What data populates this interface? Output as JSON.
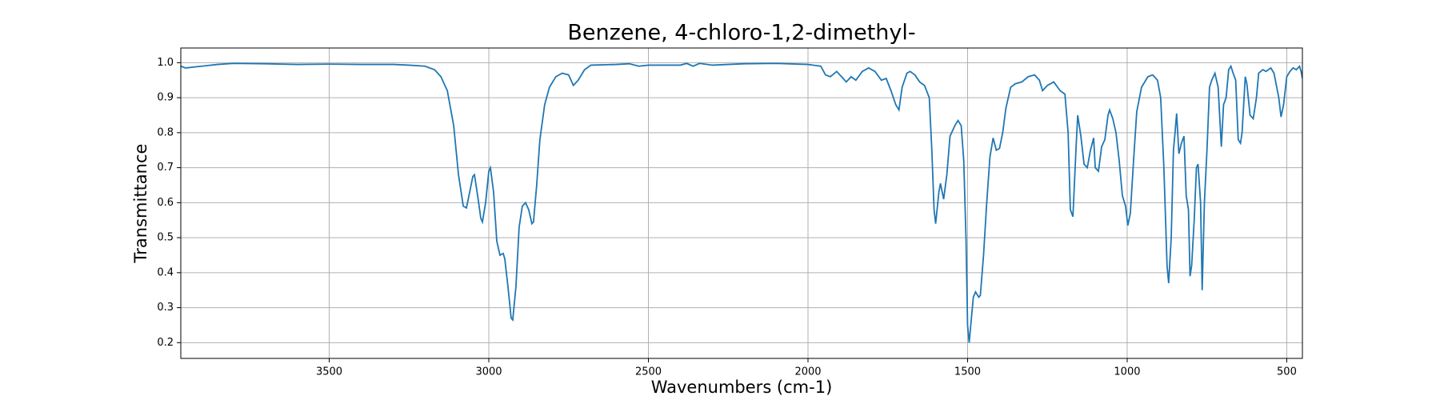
{
  "chart_data": {
    "type": "line",
    "title": "Benzene, 4-chloro-1,2-dimethyl-",
    "x_label": "Wavenumbers (cm-1)",
    "y_label": "Transmittance",
    "xlim": [
      3965,
      451
    ],
    "ylim": [
      0.155,
      1.042
    ],
    "xticks": [
      3500,
      3000,
      2500,
      2000,
      1500,
      1000,
      500
    ],
    "yticks": [
      0.2,
      0.3,
      0.4,
      0.5,
      0.6,
      0.7,
      0.8,
      0.9,
      {
        "value": 1,
        "label": "1.0"
      }
    ],
    "grid": true,
    "series": [
      {
        "color": "#1f77b4",
        "x": [
          3965,
          3950,
          3900,
          3850,
          3800,
          3700,
          3600,
          3500,
          3400,
          3300,
          3250,
          3200,
          3170,
          3150,
          3130,
          3110,
          3095,
          3080,
          3070,
          3060,
          3050,
          3045,
          3035,
          3025,
          3020,
          3010,
          3000,
          2995,
          2985,
          2975,
          2965,
          2955,
          2950,
          2940,
          2930,
          2925,
          2915,
          2905,
          2895,
          2885,
          2875,
          2865,
          2860,
          2850,
          2840,
          2825,
          2810,
          2790,
          2770,
          2750,
          2735,
          2720,
          2700,
          2680,
          2600,
          2560,
          2530,
          2500,
          2400,
          2380,
          2360,
          2340,
          2300,
          2200,
          2100,
          2000,
          1960,
          1945,
          1930,
          1910,
          1895,
          1880,
          1865,
          1850,
          1830,
          1810,
          1790,
          1770,
          1755,
          1740,
          1725,
          1715,
          1705,
          1690,
          1680,
          1665,
          1650,
          1635,
          1620,
          1612,
          1605,
          1600,
          1590,
          1585,
          1575,
          1565,
          1555,
          1540,
          1530,
          1520,
          1512,
          1505,
          1500,
          1495,
          1490,
          1482,
          1475,
          1465,
          1460,
          1450,
          1440,
          1430,
          1420,
          1410,
          1400,
          1390,
          1380,
          1365,
          1350,
          1330,
          1310,
          1290,
          1275,
          1265,
          1250,
          1230,
          1210,
          1195,
          1185,
          1178,
          1170,
          1160,
          1155,
          1145,
          1135,
          1125,
          1115,
          1105,
          1100,
          1090,
          1080,
          1070,
          1060,
          1055,
          1045,
          1035,
          1025,
          1015,
          1005,
          998,
          990,
          980,
          970,
          955,
          935,
          920,
          905,
          895,
          885,
          875,
          870,
          862,
          855,
          850,
          845,
          838,
          830,
          822,
          815,
          808,
          803,
          798,
          790,
          783,
          778,
          770,
          765,
          758,
          750,
          742,
          735,
          725,
          715,
          705,
          698,
          690,
          682,
          675,
          668,
          660,
          652,
          645,
          640,
          630,
          625,
          615,
          605,
          595,
          588,
          575,
          565,
          550,
          540,
          525,
          518,
          510,
          500,
          490,
          480,
          470,
          460,
          455,
          451
        ],
        "values": [
          0.99,
          0.985,
          0.99,
          0.995,
          0.998,
          0.997,
          0.995,
          0.996,
          0.995,
          0.995,
          0.993,
          0.99,
          0.98,
          0.96,
          0.92,
          0.82,
          0.68,
          0.59,
          0.585,
          0.63,
          0.675,
          0.68,
          0.62,
          0.555,
          0.545,
          0.6,
          0.69,
          0.7,
          0.63,
          0.49,
          0.45,
          0.455,
          0.44,
          0.36,
          0.27,
          0.265,
          0.36,
          0.53,
          0.59,
          0.6,
          0.58,
          0.54,
          0.545,
          0.65,
          0.78,
          0.88,
          0.93,
          0.96,
          0.97,
          0.965,
          0.935,
          0.95,
          0.98,
          0.993,
          0.995,
          0.997,
          0.99,
          0.993,
          0.993,
          0.998,
          0.99,
          0.998,
          0.993,
          0.997,
          0.998,
          0.995,
          0.99,
          0.965,
          0.96,
          0.975,
          0.96,
          0.945,
          0.96,
          0.95,
          0.975,
          0.985,
          0.975,
          0.95,
          0.955,
          0.92,
          0.88,
          0.865,
          0.93,
          0.97,
          0.975,
          0.965,
          0.945,
          0.935,
          0.9,
          0.75,
          0.58,
          0.54,
          0.63,
          0.655,
          0.61,
          0.68,
          0.79,
          0.82,
          0.835,
          0.82,
          0.72,
          0.5,
          0.25,
          0.2,
          0.25,
          0.33,
          0.345,
          0.33,
          0.335,
          0.45,
          0.6,
          0.73,
          0.785,
          0.75,
          0.755,
          0.8,
          0.87,
          0.93,
          0.94,
          0.945,
          0.96,
          0.965,
          0.95,
          0.92,
          0.935,
          0.945,
          0.92,
          0.91,
          0.8,
          0.58,
          0.56,
          0.76,
          0.85,
          0.79,
          0.71,
          0.7,
          0.75,
          0.785,
          0.7,
          0.69,
          0.76,
          0.78,
          0.85,
          0.865,
          0.84,
          0.8,
          0.72,
          0.62,
          0.59,
          0.535,
          0.57,
          0.72,
          0.86,
          0.93,
          0.96,
          0.965,
          0.95,
          0.9,
          0.7,
          0.42,
          0.37,
          0.5,
          0.75,
          0.8,
          0.855,
          0.74,
          0.77,
          0.79,
          0.62,
          0.58,
          0.39,
          0.42,
          0.55,
          0.7,
          0.71,
          0.6,
          0.35,
          0.6,
          0.75,
          0.93,
          0.95,
          0.97,
          0.93,
          0.76,
          0.88,
          0.9,
          0.98,
          0.99,
          0.97,
          0.95,
          0.78,
          0.77,
          0.8,
          0.96,
          0.94,
          0.85,
          0.84,
          0.9,
          0.97,
          0.98,
          0.975,
          0.985,
          0.97,
          0.9,
          0.845,
          0.88,
          0.96,
          0.975,
          0.985,
          0.98,
          0.99,
          0.975,
          0.955
        ]
      }
    ]
  }
}
